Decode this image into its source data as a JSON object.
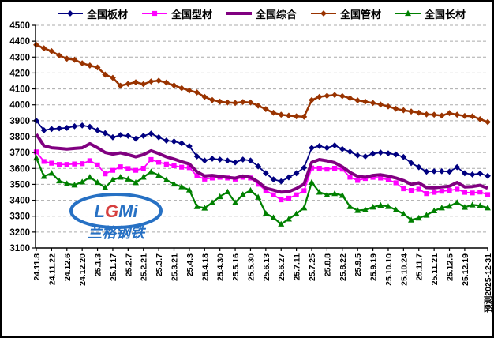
{
  "chart_data": {
    "type": "line",
    "title": "",
    "xlabel": "",
    "ylabel": "",
    "ylim": [
      3100,
      4500
    ],
    "ytick_step": 100,
    "grid": "horizontal-dashed",
    "legend_position": "top",
    "n_points": 60,
    "points_per_label": 2,
    "x_labels": [
      "24.11.8",
      "24.11.22",
      "24.12.6",
      "24.12.20",
      "25.1.3",
      "25.1.17",
      "25.2.7",
      "25.2.21",
      "25.3.7",
      "25.3.21",
      "25.4.3",
      "25.4.18",
      "25.4.30",
      "25.5.16",
      "25.5.30",
      "25.6.13",
      "25.6.27",
      "25.7.11",
      "25.7.25",
      "25.8.8",
      "25.8.22",
      "25.9.5",
      "25.9.19",
      "25.10.10",
      "25.10.24",
      "25.11.7",
      "25.11.21",
      "25.12.5",
      "25.12.19",
      "预测2025-12-31"
    ],
    "series": [
      {
        "name": "全国板材",
        "color": "#000080",
        "marker": "diamond",
        "line_width": 1.75,
        "values": [
          3900,
          3840,
          3848,
          3852,
          3855,
          3865,
          3870,
          3862,
          3840,
          3822,
          3796,
          3810,
          3805,
          3787,
          3805,
          3819,
          3796,
          3775,
          3770,
          3758,
          3740,
          3676,
          3650,
          3661,
          3656,
          3650,
          3638,
          3656,
          3650,
          3613,
          3570,
          3531,
          3519,
          3544,
          3570,
          3605,
          3729,
          3741,
          3729,
          3745,
          3722,
          3705,
          3682,
          3676,
          3693,
          3700,
          3695,
          3688,
          3672,
          3634,
          3608,
          3580,
          3582,
          3582,
          3580,
          3608,
          3570,
          3562,
          3568,
          3553
        ]
      },
      {
        "name": "全国型材",
        "color": "#FF00FF",
        "marker": "square",
        "line_width": 1.75,
        "values": [
          3704,
          3644,
          3633,
          3625,
          3625,
          3628,
          3630,
          3649,
          3622,
          3566,
          3588,
          3610,
          3599,
          3588,
          3601,
          3656,
          3639,
          3627,
          3617,
          3608,
          3605,
          3553,
          3533,
          3540,
          3545,
          3540,
          3533,
          3545,
          3540,
          3501,
          3462,
          3434,
          3403,
          3413,
          3434,
          3460,
          3603,
          3601,
          3596,
          3601,
          3596,
          3545,
          3525,
          3537,
          3544,
          3540,
          3528,
          3510,
          3472,
          3462,
          3470,
          3442,
          3450,
          3457,
          3462,
          3470,
          3450,
          3446,
          3452,
          3435
        ]
      },
      {
        "name": "全国综合",
        "color": "#800080",
        "marker": "none",
        "line_width": 4,
        "values": [
          3815,
          3743,
          3730,
          3726,
          3722,
          3726,
          3730,
          3756,
          3730,
          3700,
          3690,
          3698,
          3687,
          3673,
          3687,
          3711,
          3694,
          3673,
          3659,
          3642,
          3628,
          3579,
          3553,
          3556,
          3550,
          3544,
          3539,
          3553,
          3544,
          3515,
          3476,
          3464,
          3451,
          3454,
          3474,
          3502,
          3638,
          3656,
          3648,
          3636,
          3610,
          3575,
          3550,
          3545,
          3556,
          3560,
          3552,
          3540,
          3524,
          3500,
          3510,
          3480,
          3478,
          3484,
          3488,
          3512,
          3484,
          3486,
          3494,
          3476
        ]
      },
      {
        "name": "全国管材",
        "color": "#993300",
        "marker": "diamond",
        "line_width": 2.5,
        "values": [
          4377,
          4355,
          4337,
          4310,
          4290,
          4283,
          4261,
          4247,
          4235,
          4190,
          4170,
          4120,
          4132,
          4142,
          4130,
          4147,
          4152,
          4140,
          4122,
          4105,
          4090,
          4078,
          4050,
          4030,
          4020,
          4015,
          4012,
          4018,
          4015,
          3995,
          3973,
          3950,
          3938,
          3932,
          3928,
          3925,
          4030,
          4050,
          4057,
          4062,
          4055,
          4042,
          4028,
          4020,
          4012,
          4002,
          3990,
          3975,
          3966,
          3958,
          3950,
          3940,
          3938,
          3932,
          3948,
          3938,
          3930,
          3928,
          3910,
          3892
        ]
      },
      {
        "name": "全国长材",
        "color": "#008000",
        "marker": "triangle",
        "line_width": 2.25,
        "values": [
          3666,
          3550,
          3570,
          3522,
          3504,
          3496,
          3515,
          3545,
          3512,
          3480,
          3528,
          3545,
          3533,
          3511,
          3545,
          3579,
          3557,
          3528,
          3502,
          3485,
          3465,
          3360,
          3351,
          3385,
          3423,
          3453,
          3385,
          3436,
          3462,
          3419,
          3317,
          3291,
          3250,
          3282,
          3315,
          3352,
          3513,
          3451,
          3434,
          3442,
          3431,
          3360,
          3336,
          3340,
          3357,
          3369,
          3361,
          3340,
          3314,
          3276,
          3288,
          3306,
          3334,
          3352,
          3362,
          3386,
          3356,
          3371,
          3366,
          3352
        ]
      }
    ]
  },
  "watermark": {
    "logo_l": "L",
    "logo_g": "G",
    "logo_mi": "Mi",
    "brand_text": "兰格钢铁",
    "logo_color": "#1565C0",
    "accent_color": "#D32F2F"
  }
}
